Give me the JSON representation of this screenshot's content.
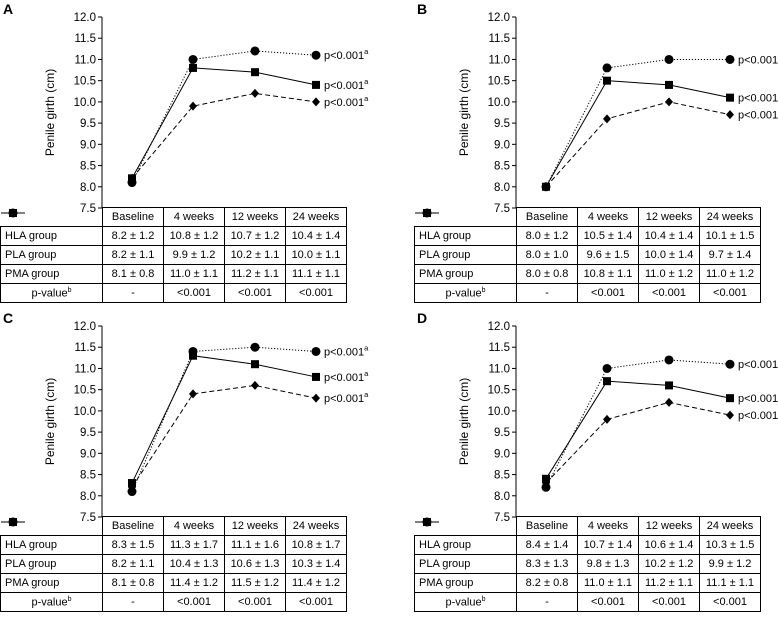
{
  "chart_data": [
    {
      "type": "line",
      "panel_label": "A",
      "ylabel": "Penile girth (cm)",
      "ylim": [
        7.5,
        12.0
      ],
      "yticks": [
        "7.5",
        "8.0",
        "8.5",
        "9.0",
        "9.5",
        "10.0",
        "10.5",
        "11.0",
        "11.5",
        "12.0"
      ],
      "categories": [
        "Baseline",
        "4 weeks",
        "12 weeks",
        "24 weeks"
      ],
      "series": [
        {
          "name": "HLA group",
          "marker": "square",
          "style": "solid",
          "values": [
            8.2,
            10.8,
            10.7,
            10.4
          ],
          "table": [
            "8.2 ± 1.2",
            "10.8 ± 1.2",
            "10.7 ± 1.2",
            "10.4 ± 1.4"
          ],
          "annotation": "p<0.001",
          "annotation_sup": "a"
        },
        {
          "name": "PLA group",
          "marker": "diamond",
          "style": "dashed",
          "values": [
            8.2,
            9.9,
            10.2,
            10.0
          ],
          "table": [
            "8.2 ± 1.1",
            "9.9 ± 1.2",
            "10.2 ± 1.1",
            "10.0 ± 1.1"
          ],
          "annotation": "p<0.001",
          "annotation_sup": "a"
        },
        {
          "name": "PMA group",
          "marker": "circle",
          "style": "dotted",
          "values": [
            8.1,
            11.0,
            11.2,
            11.1
          ],
          "table": [
            "8.1 ± 0.8",
            "11.0 ± 1.1",
            "11.2 ± 1.1",
            "11.1 ± 1.1"
          ],
          "annotation": "p<0.001",
          "annotation_sup": "a"
        }
      ],
      "pvalue_label": "p-value",
      "pvalue_sup": "b",
      "pvalues": [
        "-",
        "<0.001",
        "<0.001",
        "<0.001"
      ]
    },
    {
      "type": "line",
      "panel_label": "B",
      "ylabel": "Penile girth (cm)",
      "ylim": [
        7.5,
        12.0
      ],
      "yticks": [
        "7.5",
        "8.0",
        "8.5",
        "9.0",
        "9.5",
        "10.0",
        "10.5",
        "11.0",
        "11.5",
        "12.0"
      ],
      "categories": [
        "Baseline",
        "4 weeks",
        "12 weeks",
        "24 weeks"
      ],
      "series": [
        {
          "name": "HLA group",
          "marker": "square",
          "style": "solid",
          "values": [
            8.0,
            10.5,
            10.4,
            10.1
          ],
          "table": [
            "8.0 ± 1.2",
            "10.5 ± 1.4",
            "10.4 ± 1.4",
            "10.1 ± 1.5"
          ],
          "annotation": "p<0.001",
          "annotation_sup": "a"
        },
        {
          "name": "PLA group",
          "marker": "diamond",
          "style": "dashed",
          "values": [
            8.0,
            9.6,
            10.0,
            9.7
          ],
          "table": [
            "8.0 ± 1.0",
            "9.6 ± 1.5",
            "10.0 ± 1.4",
            "9.7 ± 1.4"
          ],
          "annotation": "p<0.001",
          "annotation_sup": "a"
        },
        {
          "name": "PMA group",
          "marker": "circle",
          "style": "dotted",
          "values": [
            8.0,
            10.8,
            11.0,
            11.0
          ],
          "table": [
            "8.0 ± 0.8",
            "10.8 ± 1.1",
            "11.0 ± 1.2",
            "11.0 ± 1.2"
          ],
          "annotation": "p<0.001",
          "annotation_sup": "a"
        }
      ],
      "pvalue_label": "p-value",
      "pvalue_sup": "b",
      "pvalues": [
        "-",
        "<0.001",
        "<0.001",
        "<0.001"
      ]
    },
    {
      "type": "line",
      "panel_label": "C",
      "ylabel": "Penile girth (cm)",
      "ylim": [
        7.5,
        12.0
      ],
      "yticks": [
        "7.5",
        "8.0",
        "8.5",
        "9.0",
        "9.5",
        "10.0",
        "10.5",
        "11.0",
        "11.5",
        "12.0"
      ],
      "categories": [
        "Baseline",
        "4 weeks",
        "12 weeks",
        "24 weeks"
      ],
      "series": [
        {
          "name": "HLA group",
          "marker": "square",
          "style": "solid",
          "values": [
            8.3,
            11.3,
            11.1,
            10.8
          ],
          "table": [
            "8.3 ± 1.5",
            "11.3 ± 1.7",
            "11.1 ± 1.6",
            "10.8 ± 1.7"
          ],
          "annotation": "p<0.001",
          "annotation_sup": "a"
        },
        {
          "name": "PLA group",
          "marker": "diamond",
          "style": "dashed",
          "values": [
            8.2,
            10.4,
            10.6,
            10.3
          ],
          "table": [
            "8.2 ± 1.1",
            "10.4 ± 1.3",
            "10.6 ± 1.3",
            "10.3 ± 1.4"
          ],
          "annotation": "p<0.001",
          "annotation_sup": "a"
        },
        {
          "name": "PMA group",
          "marker": "circle",
          "style": "dotted",
          "values": [
            8.1,
            11.4,
            11.5,
            11.4
          ],
          "table": [
            "8.1 ± 0.8",
            "11.4 ± 1.2",
            "11.5 ± 1.2",
            "11.4 ± 1.2"
          ],
          "annotation": "p<0.001",
          "annotation_sup": "a"
        }
      ],
      "pvalue_label": "p-value",
      "pvalue_sup": "b",
      "pvalues": [
        "-",
        "<0.001",
        "<0.001",
        "<0.001"
      ]
    },
    {
      "type": "line",
      "panel_label": "D",
      "ylabel": "Penile girth (cm)",
      "ylim": [
        7.5,
        12.0
      ],
      "yticks": [
        "7.5",
        "8.0",
        "8.5",
        "9.0",
        "9.5",
        "10.0",
        "10.5",
        "11.0",
        "11.5",
        "12.0"
      ],
      "categories": [
        "Baseline",
        "4 weeks",
        "12 weeks",
        "24 weeks"
      ],
      "series": [
        {
          "name": "HLA group",
          "marker": "square",
          "style": "solid",
          "values": [
            8.4,
            10.7,
            10.6,
            10.3
          ],
          "table": [
            "8.4 ± 1.4",
            "10.7 ± 1.4",
            "10.6 ± 1.4",
            "10.3 ± 1.5"
          ],
          "annotation": "p<0.001",
          "annotation_sup": "a"
        },
        {
          "name": "PLA group",
          "marker": "diamond",
          "style": "dashed",
          "values": [
            8.3,
            9.8,
            10.2,
            9.9
          ],
          "table": [
            "8.3 ± 1.3",
            "9.8 ± 1.3",
            "10.2 ± 1.2",
            "9.9 ± 1.2"
          ],
          "annotation": "p<0.001",
          "annotation_sup": "a"
        },
        {
          "name": "PMA group",
          "marker": "circle",
          "style": "dotted",
          "values": [
            8.2,
            11.0,
            11.2,
            11.1
          ],
          "table": [
            "8.2 ± 0.8",
            "11.0 ± 1.1",
            "11.2 ± 1.1",
            "11.1 ± 1.1"
          ],
          "annotation": "p<0.001",
          "annotation_sup": "a"
        }
      ],
      "pvalue_label": "p-value",
      "pvalue_sup": "b",
      "pvalues": [
        "-",
        "<0.001",
        "<0.001",
        "<0.001"
      ]
    }
  ]
}
